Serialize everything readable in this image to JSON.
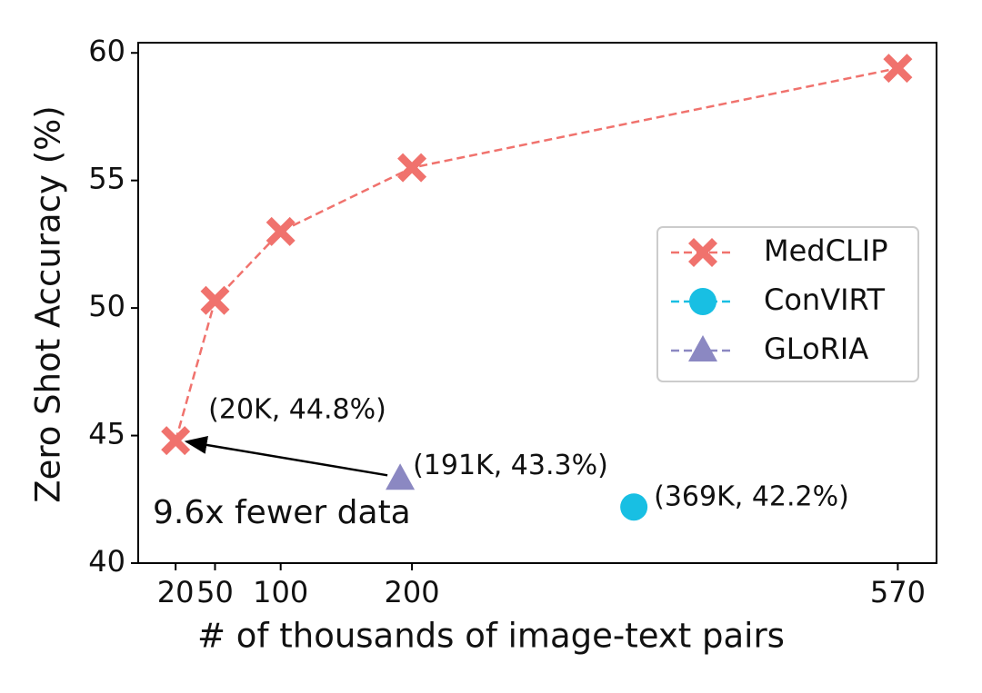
{
  "chart_data": {
    "type": "line",
    "xlabel": "# of thousands of image-text pairs",
    "ylabel": "Zero Shot Accuracy (%)",
    "xlim": [
      -8.5,
      599.5
    ],
    "ylim": [
      40,
      60.4
    ],
    "xticks": [
      20,
      50,
      100,
      200,
      570
    ],
    "yticks": [
      40,
      45,
      50,
      55,
      60
    ],
    "legend": "right",
    "series": [
      {
        "name": "MedCLIP",
        "color": "#f0726d",
        "marker": "X",
        "x": [
          20,
          50,
          100,
          200,
          570
        ],
        "values": [
          44.8,
          50.3,
          53,
          55.5,
          59.4
        ]
      },
      {
        "name": "ConVIRT",
        "color": "#18bfe3",
        "marker": "o",
        "x": [
          369
        ],
        "values": [
          42.2
        ]
      },
      {
        "name": "GLoRIA",
        "color": "#8b88c2",
        "marker": "^",
        "x": [
          191
        ],
        "values": [
          43.3
        ]
      }
    ],
    "annotations": [
      "(20K, 44.8%)",
      "(191K, 43.3%)",
      "(369K, 42.2%)",
      "9.6x fewer data"
    ]
  }
}
